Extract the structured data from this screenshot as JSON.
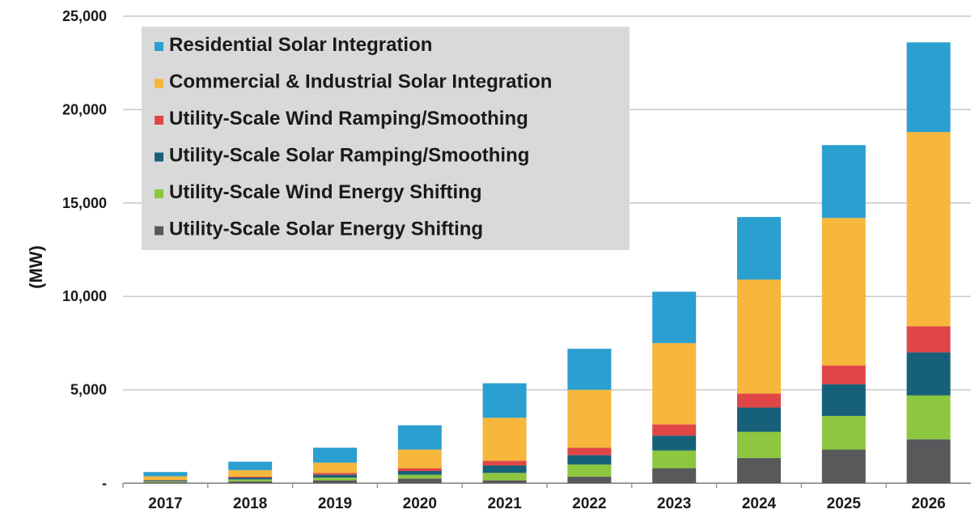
{
  "chart_data": {
    "type": "bar",
    "stacked": true,
    "ylabel": "(MW)",
    "xlabel": "",
    "title": "",
    "ylim": [
      0,
      25000
    ],
    "grid": true,
    "legend_position": "top-left",
    "categories": [
      "2017",
      "2018",
      "2019",
      "2020",
      "2021",
      "2022",
      "2023",
      "2024",
      "2025",
      "2026"
    ],
    "y_ticks": [
      {
        "value": 0,
        "label": "-"
      },
      {
        "value": 5000,
        "label": "5,000"
      },
      {
        "value": 10000,
        "label": "10,000"
      },
      {
        "value": 15000,
        "label": "15,000"
      },
      {
        "value": 20000,
        "label": "20,000"
      },
      {
        "value": 25000,
        "label": "25,000"
      }
    ],
    "series": [
      {
        "name": "Utility-Scale Solar Energy Shifting",
        "color": "#58595b",
        "values": [
          50,
          100,
          150,
          250,
          150,
          350,
          800,
          1350,
          1800,
          2350
        ]
      },
      {
        "name": "Utility-Scale Wind Energy Shifting",
        "color": "#8dc63f",
        "values": [
          50,
          100,
          150,
          200,
          400,
          650,
          950,
          1400,
          1800,
          2350
        ]
      },
      {
        "name": "Utility-Scale Solar Ramping/Smoothing",
        "color": "#17607a",
        "values": [
          50,
          100,
          150,
          200,
          400,
          500,
          800,
          1300,
          1700,
          2300
        ]
      },
      {
        "name": "Utility-Scale Wind Ramping/Smoothing",
        "color": "#e04646",
        "values": [
          20,
          50,
          100,
          150,
          250,
          400,
          600,
          750,
          1000,
          1400
        ]
      },
      {
        "name": "Commercial & Industrial Solar Integration",
        "color": "#f6b73c",
        "values": [
          200,
          350,
          550,
          1000,
          2300,
          3100,
          4350,
          6100,
          7900,
          10400
        ]
      },
      {
        "name": "Residential Solar Integration",
        "color": "#2b9fd0",
        "values": [
          230,
          450,
          800,
          1300,
          1850,
          2200,
          2750,
          3350,
          3900,
          4800
        ]
      }
    ]
  },
  "legend_order": [
    5,
    4,
    3,
    2,
    1,
    0
  ],
  "legend_background": "#d9d9d9"
}
